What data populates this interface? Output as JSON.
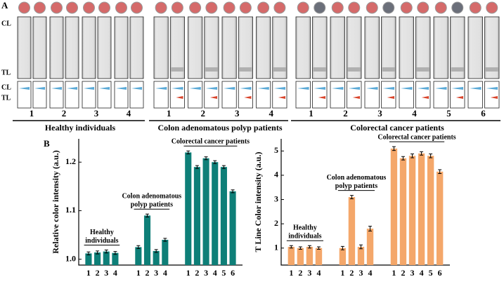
{
  "panel_a": {
    "label": "A",
    "strip_labels": {
      "cl": "CL",
      "tl": "TL"
    },
    "profile_labels": {
      "cl": "CL",
      "tl": "TL"
    },
    "groups": [
      {
        "name": "Healthy individuals",
        "samples": [
          "1",
          "2",
          "3",
          "4"
        ]
      },
      {
        "name": "Colon adenomatous polyp patients",
        "samples": [
          "1",
          "2",
          "3",
          "4"
        ]
      },
      {
        "name": "Colorectal cancer patients",
        "samples": [
          "1",
          "2",
          "3",
          "4",
          "5",
          "6"
        ]
      }
    ]
  },
  "panel_b_label": "B",
  "chart_data": [
    {
      "type": "bar",
      "y_label": "Relative color intensity (a.u.)",
      "color": "#0e7f78",
      "categories": [
        "1",
        "2",
        "3",
        "4",
        "1",
        "2",
        "3",
        "4",
        "1",
        "2",
        "3",
        "4",
        "5",
        "6"
      ],
      "values": [
        1.012,
        1.014,
        1.016,
        1.013,
        1.025,
        1.09,
        1.017,
        1.04,
        1.22,
        1.19,
        1.208,
        1.2,
        1.19,
        1.14
      ],
      "errors": [
        0.003,
        0.003,
        0.003,
        0.003,
        0.003,
        0.003,
        0.003,
        0.003,
        0.003,
        0.003,
        0.003,
        0.003,
        0.003,
        0.003
      ],
      "ylim": [
        0.988,
        1.248
      ],
      "yticks": [
        {
          "value": 1,
          "label": "1.0"
        },
        1.1,
        1.2
      ],
      "annotations": [
        {
          "lines": [
            "Healthy",
            "individuals"
          ]
        },
        {
          "lines": [
            "Colon  adenomatous",
            "polyp patients"
          ]
        },
        {
          "lines": [
            "Colorectal cancer patients"
          ]
        }
      ]
    },
    {
      "type": "bar",
      "y_label": "T Line Color intensity (a.u.)",
      "color": "#f4a76a",
      "categories": [
        "1",
        "2",
        "3",
        "4",
        "1",
        "2",
        "3",
        "4",
        "1",
        "2",
        "3",
        "4",
        "5",
        "6"
      ],
      "values": [
        1.05,
        1.0,
        1.05,
        1.0,
        1.0,
        3.1,
        1.05,
        1.8,
        5.1,
        4.7,
        4.8,
        4.9,
        4.8,
        4.15
      ],
      "errors": [
        0.05,
        0.05,
        0.05,
        0.05,
        0.07,
        0.07,
        0.08,
        0.1,
        0.08,
        0.07,
        0.08,
        0.07,
        0.08,
        0.08
      ],
      "ylim": [
        0.3,
        5.5
      ],
      "yticks": [
        1,
        2,
        3,
        4,
        5
      ],
      "annotations": [
        {
          "lines": [
            "Healthy",
            "individuals"
          ]
        },
        {
          "lines": [
            "Colon adenomatous",
            "polyp patients"
          ]
        },
        {
          "lines": [
            "Colorectal cancer patients"
          ]
        }
      ]
    }
  ]
}
